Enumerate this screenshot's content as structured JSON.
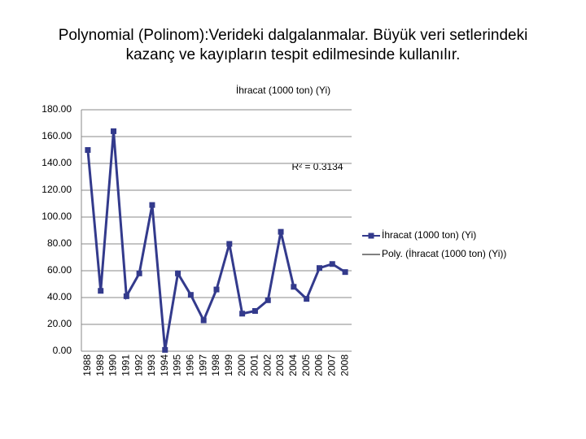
{
  "slide_title": "Polynomial (Polinom):Verideki dalgalanmalar. Büyük veri setlerindeki kazanç ve kayıpların tespit edilmesinde kullanılır.",
  "chart_data": {
    "type": "line",
    "title": "İhracat (1000 ton) (Yi)",
    "categories": [
      "1988",
      "1989",
      "1990",
      "1991",
      "1992",
      "1993",
      "1994",
      "1995",
      "1996",
      "1997",
      "1998",
      "1999",
      "2000",
      "2001",
      "2002",
      "2003",
      "2004",
      "2005",
      "2006",
      "2007",
      "2008"
    ],
    "series": [
      {
        "name": "İhracat (1000 ton) (Yi)",
        "color": "#333a8c",
        "values": [
          150,
          45,
          164,
          41,
          58,
          109,
          1,
          58,
          42,
          23,
          46,
          80,
          28,
          30,
          38,
          89,
          48,
          39,
          62,
          65,
          59
        ]
      }
    ],
    "trendline": {
      "name": "Poly. (İhracat (1000 ton) (Yi))",
      "color": "#000000",
      "r2_label": "R² = 0.3134"
    },
    "ylim": [
      0,
      180
    ],
    "yticks": [
      {
        "value": 0,
        "label": "0.00"
      },
      {
        "value": 20,
        "label": "20.00"
      },
      {
        "value": 40,
        "label": "40.00"
      },
      {
        "value": 60,
        "label": "60.00"
      },
      {
        "value": 80,
        "label": "80.00"
      },
      {
        "value": 100,
        "label": "100.00"
      },
      {
        "value": 120,
        "label": "120.00"
      },
      {
        "value": 140,
        "label": "140.00"
      },
      {
        "value": 160,
        "label": "160.00"
      },
      {
        "value": 180,
        "label": "180.00"
      }
    ],
    "grid": true,
    "legend": "right"
  }
}
